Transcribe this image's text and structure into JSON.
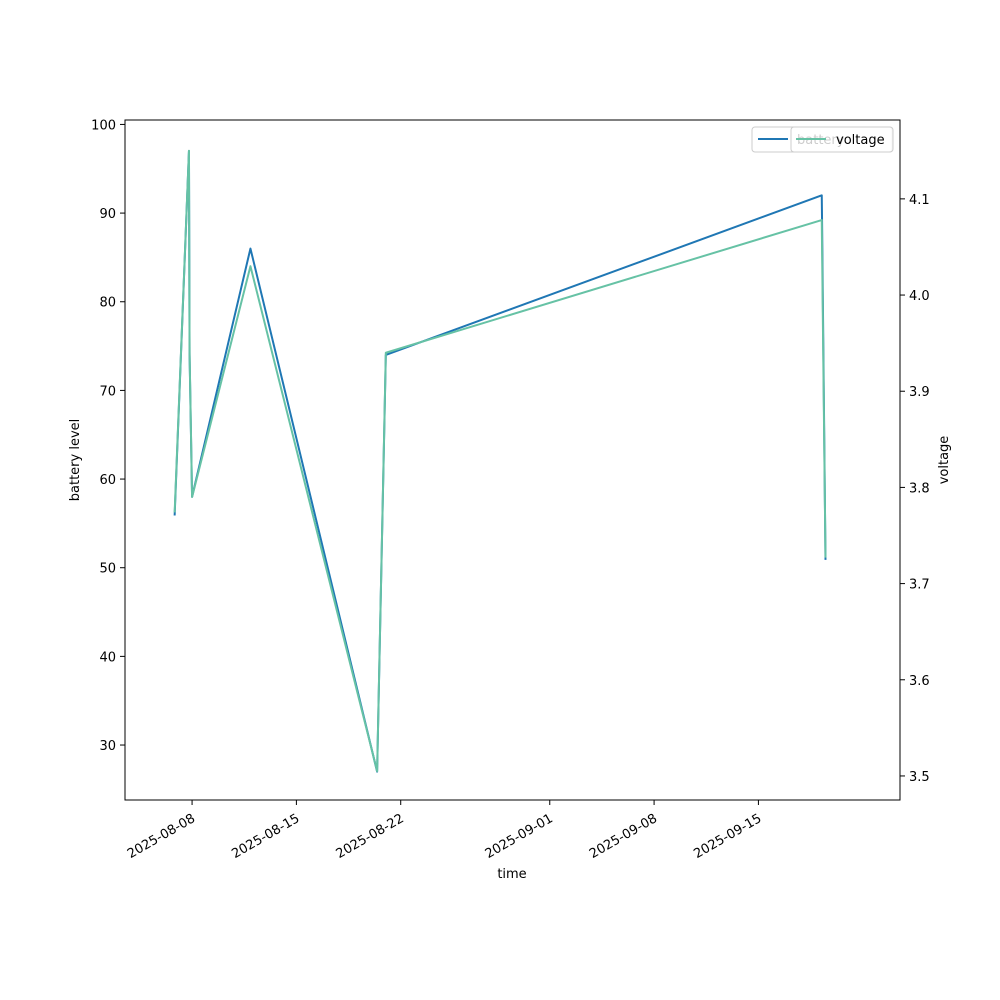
{
  "chart_data": {
    "type": "line",
    "xlabel": "time",
    "ylabel_left": "battery level",
    "ylabel_right": "voltage",
    "x_range": [
      "2025-08-03T12:00",
      "2025-09-24T12:00"
    ],
    "y_left_range": [
      23.8,
      100.5
    ],
    "y_right_range": [
      3.475,
      4.182
    ],
    "x_ticks": [
      "2025-08-08",
      "2025-08-15",
      "2025-08-22",
      "2025-09-01",
      "2025-09-08",
      "2025-09-15"
    ],
    "y_left_ticks": [
      30,
      40,
      50,
      60,
      70,
      80,
      90,
      100
    ],
    "y_right_ticks": [
      3.5,
      3.6,
      3.7,
      3.8,
      3.9,
      4.0,
      4.1
    ],
    "y_right_tick_labels": [
      "3.5",
      "3.6",
      "3.7",
      "3.8",
      "3.9",
      "4.0",
      "4.1"
    ],
    "series": [
      {
        "name": "battery",
        "axis": "left",
        "color": "#1f77b4",
        "points": [
          {
            "x": "2025-08-06T20:00",
            "y": 56
          },
          {
            "x": "2025-08-07T19:00",
            "y": 97
          },
          {
            "x": "2025-08-07T20:00",
            "y": 74
          },
          {
            "x": "2025-08-08T00:00",
            "y": 58
          },
          {
            "x": "2025-08-11T22:00",
            "y": 86
          },
          {
            "x": "2025-08-20T10:00",
            "y": 27
          },
          {
            "x": "2025-08-21T00:00",
            "y": 74
          },
          {
            "x": "2025-09-19T06:00",
            "y": 92
          },
          {
            "x": "2025-09-19T06:30",
            "y": 89
          },
          {
            "x": "2025-09-19T12:00",
            "y": 51
          }
        ]
      },
      {
        "name": "voltage",
        "axis": "right",
        "color": "#66c2a5",
        "points": [
          {
            "x": "2025-08-06T20:00",
            "y": 3.775
          },
          {
            "x": "2025-08-07T19:00",
            "y": 4.15
          },
          {
            "x": "2025-08-07T20:00",
            "y": 3.94
          },
          {
            "x": "2025-08-08T00:00",
            "y": 3.79
          },
          {
            "x": "2025-08-11T22:00",
            "y": 4.03
          },
          {
            "x": "2025-08-20T10:00",
            "y": 3.505
          },
          {
            "x": "2025-08-21T00:00",
            "y": 3.94
          },
          {
            "x": "2025-09-19T06:00",
            "y": 4.078
          },
          {
            "x": "2025-09-19T12:00",
            "y": 3.728
          }
        ]
      }
    ],
    "legend_left": {
      "label": "battery",
      "placement": "upper-right"
    },
    "legend_right": {
      "label": "voltage",
      "placement": "upper-right"
    }
  }
}
